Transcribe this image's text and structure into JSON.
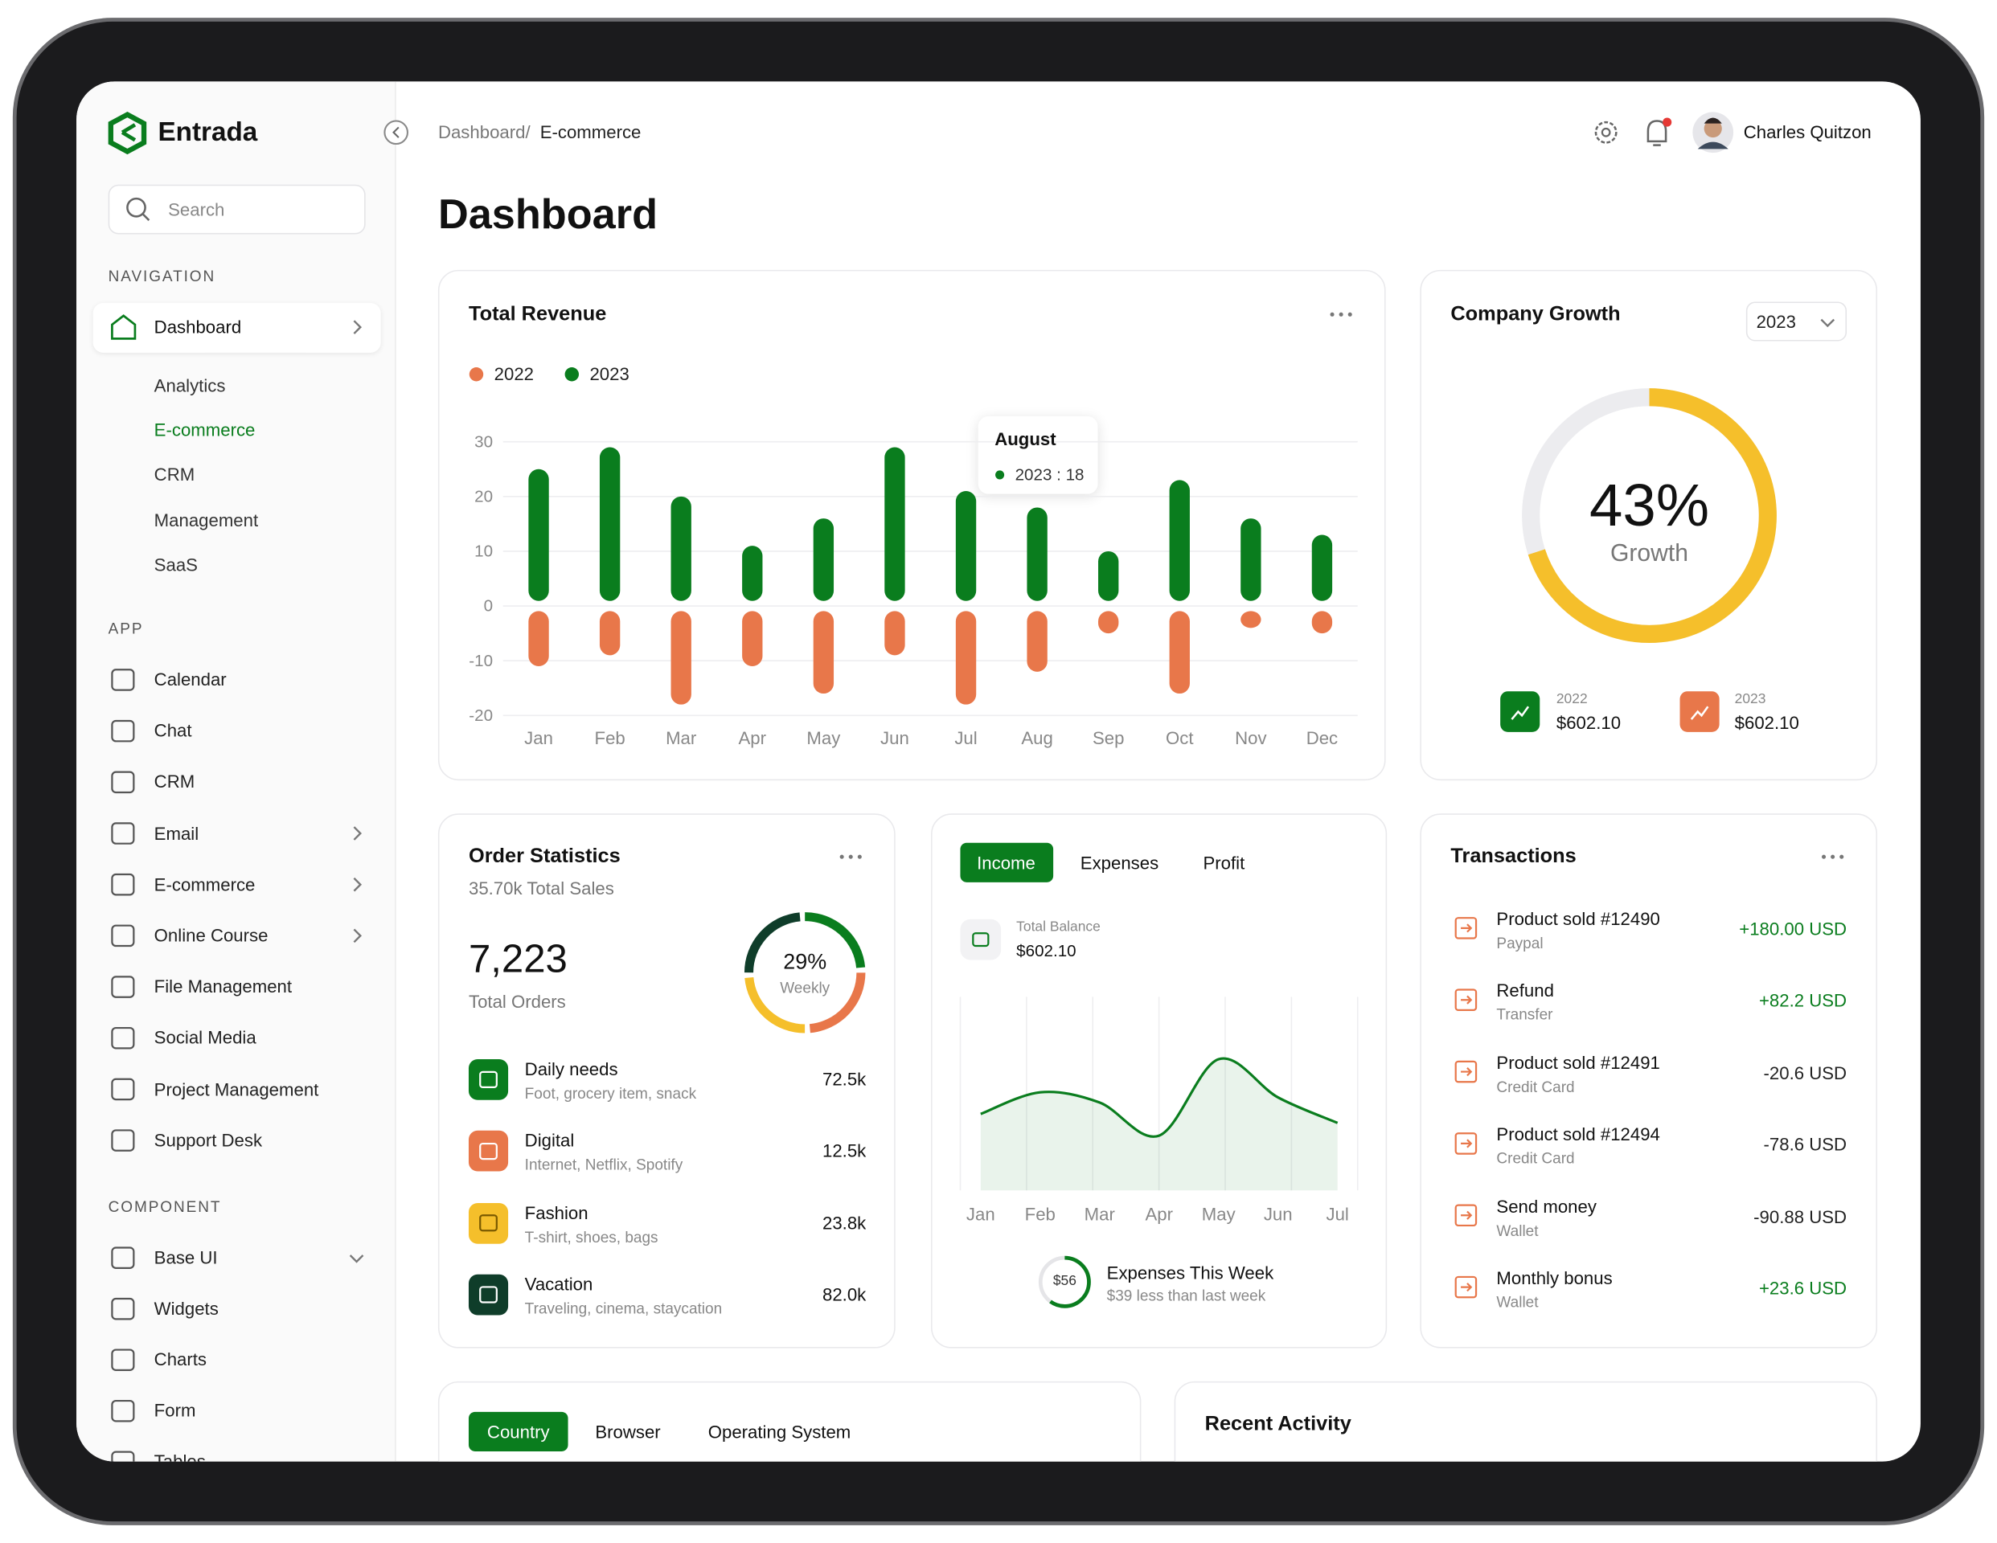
{
  "sidebar": {
    "brand": "Entrada",
    "search_placeholder": "Search",
    "navigation_heading": "NAVIGATION",
    "dashboard": "Dashboard",
    "dashboard_sub": [
      "Analytics",
      "E-commerce",
      "CRM",
      "Management",
      "SaaS"
    ],
    "app_heading": "APP",
    "app_items": [
      "Calendar",
      "Chat",
      "CRM",
      "Email",
      "E-commerce",
      "Online Course",
      "File Management",
      "Social Media",
      "Project Management",
      "Support Desk"
    ],
    "component_heading": "COMPONENT",
    "component_items": [
      "Base UI",
      "Widgets",
      "Charts",
      "Form",
      "Tables"
    ]
  },
  "header": {
    "breadcrumb_parent": "Dashboard/",
    "breadcrumb_current": "E-commerce",
    "user_name": "Charles Quitzon",
    "page_title": "Dashboard"
  },
  "chart_data": [
    {
      "type": "bar",
      "title": "Total Revenue",
      "categories": [
        "Jan",
        "Feb",
        "Mar",
        "Apr",
        "May",
        "Jun",
        "Jul",
        "Aug",
        "Sep",
        "Oct",
        "Nov",
        "Dec"
      ],
      "series": [
        {
          "name": "2022",
          "color": "#e8774a",
          "values": [
            -11,
            -9,
            -18,
            -11,
            -16,
            -9,
            -18,
            -12,
            -5,
            -16,
            -4,
            -5
          ]
        },
        {
          "name": "2023",
          "color": "#0a7d1e",
          "values": [
            25,
            29,
            20,
            11,
            16,
            29,
            21,
            18,
            10,
            23,
            16,
            13
          ]
        }
      ],
      "ylim": [
        -20,
        30
      ],
      "yticks": [
        -20,
        -10,
        0,
        10,
        20,
        30
      ],
      "grid": true,
      "tooltip": {
        "title": "August",
        "text": "2023 : 18"
      }
    },
    {
      "type": "area",
      "categories": [
        "Jan",
        "Feb",
        "Mar",
        "Apr",
        "May",
        "Jun",
        "Jul"
      ],
      "values": [
        25,
        42,
        34,
        8,
        68,
        38,
        18
      ],
      "color": "#0a7d1e"
    }
  ],
  "company_growth": {
    "title": "Company Growth",
    "year_select": "2023",
    "percent": "43%",
    "caption": "Growth",
    "stats": [
      {
        "year": "2022",
        "amount": "$602.10"
      },
      {
        "year": "2023",
        "amount": "$602.10"
      }
    ]
  },
  "order_statistics": {
    "title": "Order Statistics",
    "total_sales": "35.70k Total Sales",
    "orders": "7,223",
    "orders_caption": "Total Orders",
    "weekly": "29%",
    "weekly_caption": "Weekly",
    "items": [
      {
        "name": "Daily needs",
        "desc": "Foot, grocery item, snack",
        "value": "72.5k"
      },
      {
        "name": "Digital",
        "desc": "Internet, Netflix, Spotify",
        "value": "12.5k"
      },
      {
        "name": "Fashion",
        "desc": "T-shirt, shoes, bags",
        "value": "23.8k"
      },
      {
        "name": "Vacation",
        "desc": "Traveling, cinema, staycation",
        "value": "82.0k"
      }
    ]
  },
  "income": {
    "tabs": [
      "Income",
      "Expenses",
      "Profit"
    ],
    "balance_label": "Total Balance",
    "balance": "$602.10",
    "expenses_badge": "$56",
    "expenses_title": "Expenses This Week",
    "expenses_subtitle": "$39 less than last week"
  },
  "transactions": {
    "title": "Transactions",
    "items": [
      {
        "name": "Product sold #12490",
        "method": "Paypal",
        "amount": "+180.00 USD"
      },
      {
        "name": "Refund",
        "method": "Transfer",
        "amount": "+82.2 USD"
      },
      {
        "name": "Product sold #12491",
        "method": "Credit Card",
        "amount": "-20.6 USD"
      },
      {
        "name": "Product sold #12494",
        "method": "Credit Card",
        "amount": "-78.6 USD"
      },
      {
        "name": "Send money",
        "method": "Wallet",
        "amount": "-90.88 USD"
      },
      {
        "name": "Monthly bonus",
        "method": "Wallet",
        "amount": "+23.6 USD"
      }
    ]
  },
  "bottom": {
    "tabs": [
      "Country",
      "Browser",
      "Operating System"
    ],
    "recent_activity": "Recent Activity"
  }
}
